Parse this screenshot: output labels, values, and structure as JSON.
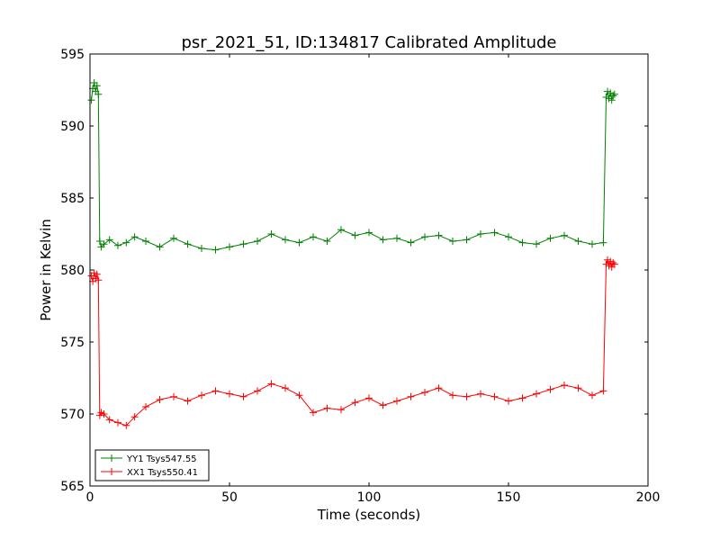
{
  "chart_data": {
    "type": "line",
    "title": "psr_2021_51, ID:134817 Calibrated Amplitude",
    "xlabel": "Time (seconds)",
    "ylabel": "Power in Kelvin",
    "xlim": [
      0,
      200
    ],
    "ylim": [
      565,
      595
    ],
    "xticks": [
      0,
      50,
      100,
      150,
      200
    ],
    "yticks": [
      565,
      570,
      575,
      580,
      585,
      590,
      595
    ],
    "grid": false,
    "legend_position": "lower-left",
    "marker": "plus",
    "series": [
      {
        "name": "YY1 Tsys547.55",
        "color": "#008000",
        "x": [
          0.5,
          1,
          1.5,
          2,
          2.5,
          3,
          3.5,
          4,
          5,
          7,
          10,
          13,
          16,
          20,
          25,
          30,
          35,
          40,
          45,
          50,
          55,
          60,
          65,
          70,
          75,
          80,
          85,
          90,
          95,
          100,
          105,
          110,
          115,
          120,
          125,
          130,
          135,
          140,
          145,
          150,
          155,
          160,
          165,
          170,
          175,
          180,
          184,
          185,
          185.5,
          186,
          186.5,
          187,
          187.5,
          188
        ],
        "y": [
          591.8,
          592.6,
          593.0,
          592.4,
          592.8,
          592.2,
          582.0,
          581.6,
          581.8,
          582.1,
          581.7,
          581.9,
          582.3,
          582.0,
          581.6,
          582.2,
          581.8,
          581.5,
          581.4,
          581.6,
          581.8,
          582.0,
          582.5,
          582.1,
          581.9,
          582.3,
          582.0,
          582.8,
          582.4,
          582.6,
          582.1,
          582.2,
          581.9,
          582.3,
          582.4,
          582.0,
          582.1,
          582.5,
          582.6,
          582.3,
          581.9,
          581.8,
          582.2,
          582.4,
          582.0,
          581.8,
          581.9,
          592.0,
          592.4,
          591.9,
          592.3,
          591.8,
          592.1,
          592.2
        ]
      },
      {
        "name": "XX1 Tsys550.41",
        "color": "#ff0000",
        "x": [
          0.5,
          1,
          1.5,
          2,
          2.5,
          3,
          3.5,
          4,
          5,
          7,
          10,
          13,
          16,
          20,
          25,
          30,
          35,
          40,
          45,
          50,
          55,
          60,
          65,
          70,
          75,
          80,
          85,
          90,
          95,
          100,
          105,
          110,
          115,
          120,
          125,
          130,
          135,
          140,
          145,
          150,
          155,
          160,
          165,
          170,
          175,
          180,
          184,
          185,
          185.5,
          186,
          186.5,
          187,
          187.5,
          188
        ],
        "y": [
          579.6,
          579.2,
          579.8,
          579.4,
          579.7,
          579.3,
          569.9,
          570.1,
          570.0,
          569.6,
          569.4,
          569.2,
          569.8,
          570.5,
          571.0,
          571.2,
          570.9,
          571.3,
          571.6,
          571.4,
          571.2,
          571.6,
          572.1,
          571.8,
          571.3,
          570.1,
          570.4,
          570.3,
          570.8,
          571.1,
          570.6,
          570.9,
          571.2,
          571.5,
          571.8,
          571.3,
          571.2,
          571.4,
          571.2,
          570.9,
          571.1,
          571.4,
          571.7,
          572.0,
          571.8,
          571.3,
          571.6,
          580.4,
          580.7,
          580.3,
          580.6,
          580.2,
          580.5,
          580.4
        ]
      }
    ]
  }
}
